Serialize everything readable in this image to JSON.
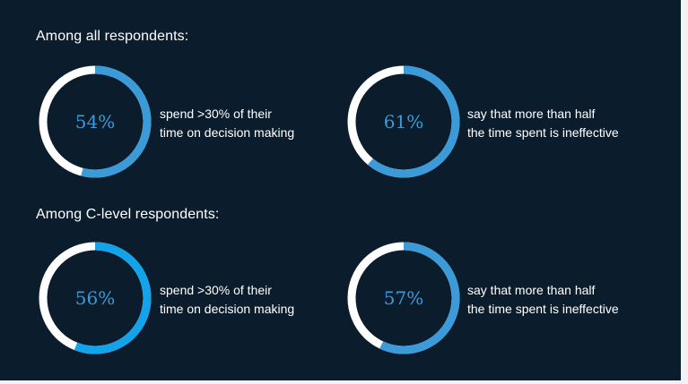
{
  "chart_data": [
    {
      "type": "pie",
      "group": "Among all respondents:",
      "value": 54,
      "value_label": "54%",
      "caption_lines": [
        "spend >30% of their",
        "time on decision making"
      ],
      "color": "#3a9bd8"
    },
    {
      "type": "pie",
      "group": "Among all respondents:",
      "value": 61,
      "value_label": "61%",
      "caption_lines": [
        "say that more than half",
        "the time spent is ineffective"
      ],
      "color": "#3a9bd8"
    },
    {
      "type": "pie",
      "group": "Among C-level respondents:",
      "value": 56,
      "value_label": "56%",
      "caption_lines": [
        "spend >30% of their",
        "time on decision making"
      ],
      "color": "#13a3ea"
    },
    {
      "type": "pie",
      "group": "Among C-level respondents:",
      "value": 57,
      "value_label": "57%",
      "caption_lines": [
        "say that more than half",
        "the time spent is ineffective"
      ],
      "color": "#3a9bd8"
    }
  ],
  "sections": {
    "all_heading": "Among all respondents:",
    "clevel_heading": "Among C-level respondents:"
  },
  "colors": {
    "background": "#0b1d2d",
    "track": "#ffffff",
    "value_text": "#3a9bd8"
  }
}
